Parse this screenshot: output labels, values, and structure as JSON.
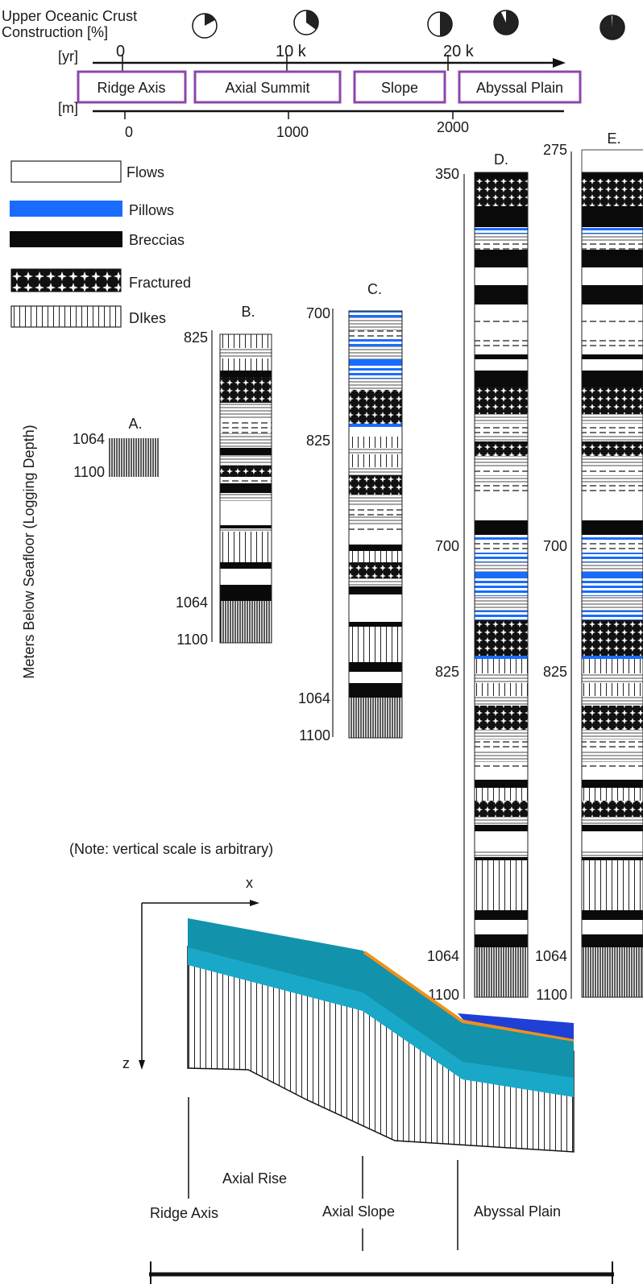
{
  "header": {
    "crust_label_line1": "Upper Oceanic Crust",
    "crust_label_line2": "Construction [%]",
    "pie_fractions": [
      0.17,
      0.35,
      0.5,
      0.93,
      0.99
    ],
    "yr_unit": "[yr]",
    "yr_ticks": [
      "0",
      "10 k",
      "20 k"
    ],
    "m_unit": "[m]",
    "m_ticks": [
      "0",
      "1000",
      "2000"
    ],
    "zones": [
      "Ridge Axis",
      "Axial Summit",
      "Slope",
      "Abyssal Plain"
    ]
  },
  "legend": {
    "items": [
      {
        "key": "flows",
        "label": "Flows"
      },
      {
        "key": "pillows",
        "label": "Pillows"
      },
      {
        "key": "breccias",
        "label": "Breccias"
      },
      {
        "key": "fractured",
        "label": "Fractured"
      },
      {
        "key": "dikes",
        "label": "DIkes"
      }
    ]
  },
  "colors": {
    "pillows": "#1a6cff",
    "breccias": "#0a0a0a",
    "zone_border": "#8e44ad",
    "layer_top": "#1aa8c8",
    "layer_dark": "#0d7f94",
    "pillow_deep": "#1f3fd6",
    "sediment_orange": "#f0901a"
  },
  "y_axis_label": "Meters Below Seafloor (Logging Depth)",
  "columns": {
    "A": {
      "title": "A.",
      "depth_labels": [
        "1064",
        "1100"
      ]
    },
    "B": {
      "title": "B.",
      "depth_labels": [
        "825",
        "1064",
        "1100"
      ]
    },
    "C": {
      "title": "C.",
      "depth_labels": [
        "700",
        "825",
        "1064",
        "1100"
      ]
    },
    "D": {
      "title": "D.",
      "depth_labels": [
        "350",
        "700",
        "825",
        "1064",
        "1100"
      ]
    },
    "E": {
      "title": "E.",
      "depth_labels": [
        "275",
        "700",
        "825",
        "1064",
        "1100"
      ]
    }
  },
  "note": "(Note: vertical scale is arbitrary)",
  "cross_section": {
    "x_axis_label": "x",
    "z_axis_label": "z",
    "labels": {
      "axial_rise": "Axial Rise",
      "ridge_axis": "Ridge Axis",
      "axial_slope": "Axial Slope",
      "abyssal_plain": "Abyssal Plain"
    }
  }
}
